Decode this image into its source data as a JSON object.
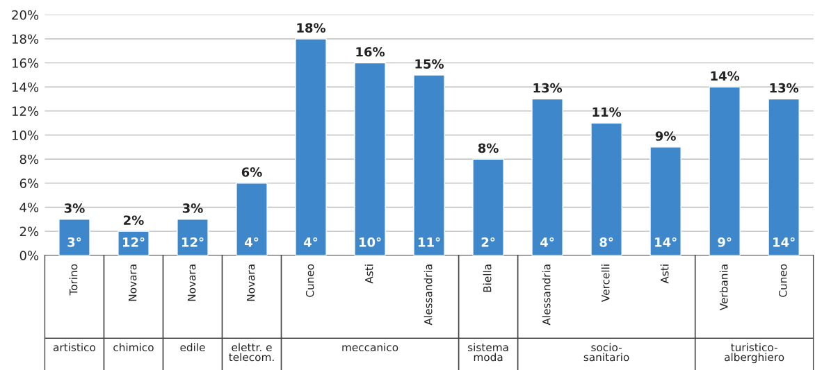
{
  "chart_data": {
    "type": "bar",
    "categories": [
      "Torino",
      "Novara",
      "Novara",
      "Novara",
      "Cuneo",
      "Asti",
      "Alessandria",
      "Biella",
      "Alessandria",
      "Vercelli",
      "Asti",
      "Verbania",
      "Cuneo"
    ],
    "values": [
      3,
      2,
      3,
      6,
      18,
      16,
      15,
      8,
      13,
      11,
      9,
      14,
      13
    ],
    "value_labels": [
      "3%",
      "2%",
      "3%",
      "6%",
      "18%",
      "16%",
      "15%",
      "8%",
      "13%",
      "11%",
      "9%",
      "14%",
      "13%"
    ],
    "color": "#3f87cb",
    "ylim": [
      0,
      20
    ],
    "yticks": [
      {
        "value": 0,
        "label": "0%"
      },
      {
        "value": 2,
        "label": "2%"
      },
      {
        "value": 4,
        "label": "4%"
      },
      {
        "value": 6,
        "label": "6%"
      },
      {
        "value": 8,
        "label": "8%"
      },
      {
        "value": 10,
        "label": "10%"
      },
      {
        "value": 12,
        "label": "12%"
      },
      {
        "value": 14,
        "label": "14%"
      },
      {
        "value": 16,
        "label": "16%"
      },
      {
        "value": 18,
        "label": "18%"
      },
      {
        "value": 20,
        "label": "20%"
      }
    ],
    "grid": "y",
    "annotations": [
      "3°",
      "12°",
      "12°",
      "4°",
      "4°",
      "10°",
      "11°",
      "2°",
      "4°",
      "8°",
      "14°",
      "9°",
      "14°",
      "artistico",
      "chimico",
      "edile",
      "elettr. e\ntelecom.",
      "meccanico",
      "sistema\nmoda",
      "socio-\nsanitario",
      "turistico-\nalberghiero"
    ]
  }
}
